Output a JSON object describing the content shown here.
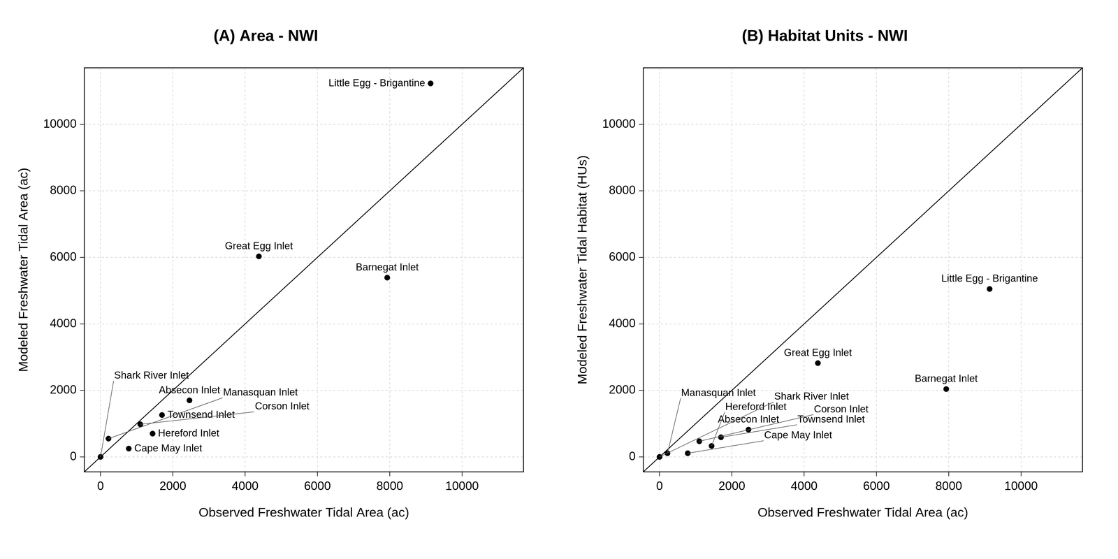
{
  "chart_data": [
    {
      "type": "scatter",
      "title": "(A) Area - NWI",
      "x_label": "Observed Freshwater Tidal Area (ac)",
      "y_label": "Modeled Freshwater Tidal Area (ac)",
      "labels": [
        "Little Egg - Brigantine",
        "Great Egg Inlet",
        "Barnegat Inlet",
        "Absecon Inlet",
        "Townsend Inlet",
        "Corson Inlet",
        "Hereford Inlet",
        "Manasquan Inlet",
        "Cape May Inlet",
        "Shark River Inlet"
      ],
      "x": [
        9130,
        4380,
        7930,
        2460,
        1700,
        1100,
        1440,
        220,
        780,
        0
      ],
      "values": [
        11230,
        6030,
        5390,
        1700,
        1260,
        980,
        700,
        550,
        250,
        0
      ],
      "color": "#000000",
      "marker": "circle",
      "xlim": [
        -450,
        11700
      ],
      "ylim": [
        -450,
        11700
      ],
      "xticks": [
        0,
        2000,
        4000,
        6000,
        8000,
        10000
      ],
      "yticks": [
        0,
        2000,
        4000,
        6000,
        8000,
        10000
      ],
      "grid": true
    },
    {
      "type": "scatter",
      "title": "(B) Habitat Units - NWI",
      "x_label": "Observed Freshwater Tidal Area (ac)",
      "y_label": "Modeled Freshwater Tidal Habitat (HUs)",
      "labels": [
        "Little Egg - Brigantine",
        "Great Egg Inlet",
        "Barnegat Inlet",
        "Absecon Inlet",
        "Townsend Inlet",
        "Corson Inlet",
        "Hereford Inlet",
        "Manasquan Inlet",
        "Cape May Inlet",
        "Shark River Inlet"
      ],
      "x": [
        9130,
        4380,
        7930,
        2460,
        1700,
        1100,
        1440,
        220,
        780,
        0
      ],
      "values": [
        5050,
        2820,
        2040,
        820,
        590,
        470,
        330,
        110,
        110,
        0
      ],
      "color": "#000000",
      "marker": "circle",
      "xlim": [
        -450,
        11700
      ],
      "ylim": [
        -450,
        11700
      ],
      "xticks": [
        0,
        2000,
        4000,
        6000,
        8000,
        10000
      ],
      "yticks": [
        0,
        2000,
        4000,
        6000,
        8000,
        10000
      ],
      "grid": true
    }
  ]
}
